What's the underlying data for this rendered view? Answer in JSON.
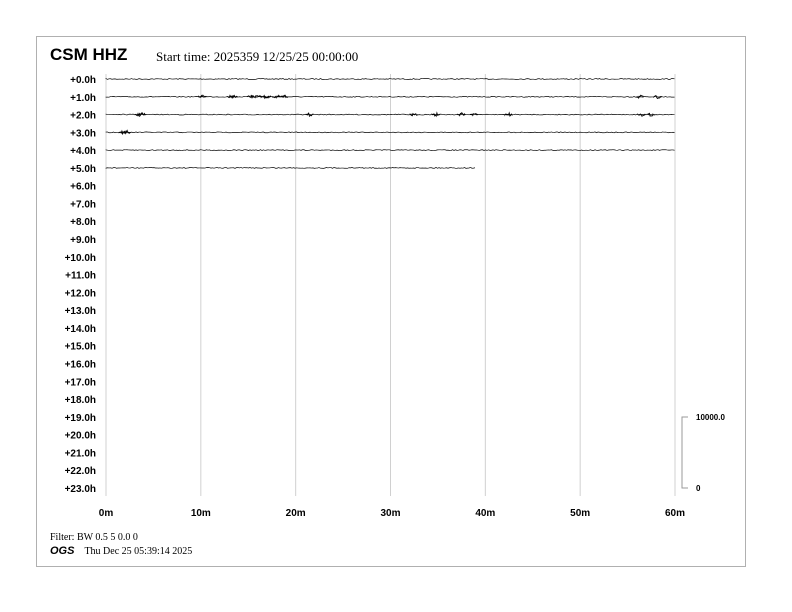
{
  "header": {
    "station": "CSM HHZ",
    "start_time": "Start time: 2025359 12/25/25 00:00:00"
  },
  "footer": {
    "filter": "Filter: BW 0.5 5 0.0 0",
    "org": "OGS",
    "generated": "Thu Dec 25 05:39:14 2025"
  },
  "chart_data": {
    "type": "line",
    "title": "CSM HHZ",
    "row_labels": [
      "+0.0h",
      "+1.0h",
      "+2.0h",
      "+3.0h",
      "+4.0h",
      "+5.0h",
      "+6.0h",
      "+7.0h",
      "+8.0h",
      "+9.0h",
      "+10.0h",
      "+11.0h",
      "+12.0h",
      "+13.0h",
      "+14.0h",
      "+15.0h",
      "+16.0h",
      "+17.0h",
      "+18.0h",
      "+19.0h",
      "+20.0h",
      "+21.0h",
      "+22.0h",
      "+23.0h"
    ],
    "x_ticks": [
      "0m",
      "10m",
      "20m",
      "30m",
      "40m",
      "50m",
      "60m"
    ],
    "xlim": [
      0,
      60
    ],
    "grid": true,
    "trace_color": "#000000",
    "traces": [
      {
        "row": 0,
        "end_minute": 60,
        "events": []
      },
      {
        "row": 1,
        "end_minute": 60,
        "events": [
          10.2,
          13.2,
          13.5,
          15.3,
          16.0,
          16.8,
          17.0,
          18.0,
          18.8,
          56.3,
          58.2
        ]
      },
      {
        "row": 2,
        "end_minute": 60,
        "events": [
          3.5,
          3.8,
          21.5,
          32.5,
          34.8,
          37.5,
          38.8,
          42.5,
          56.5,
          57.5
        ]
      },
      {
        "row": 3,
        "end_minute": 60,
        "events": [
          1.8,
          2.2
        ]
      },
      {
        "row": 4,
        "end_minute": 60,
        "events": []
      },
      {
        "row": 5,
        "end_minute": 39,
        "events": []
      }
    ],
    "scale": {
      "top_label": "10000.0",
      "bottom_label": "0"
    }
  }
}
